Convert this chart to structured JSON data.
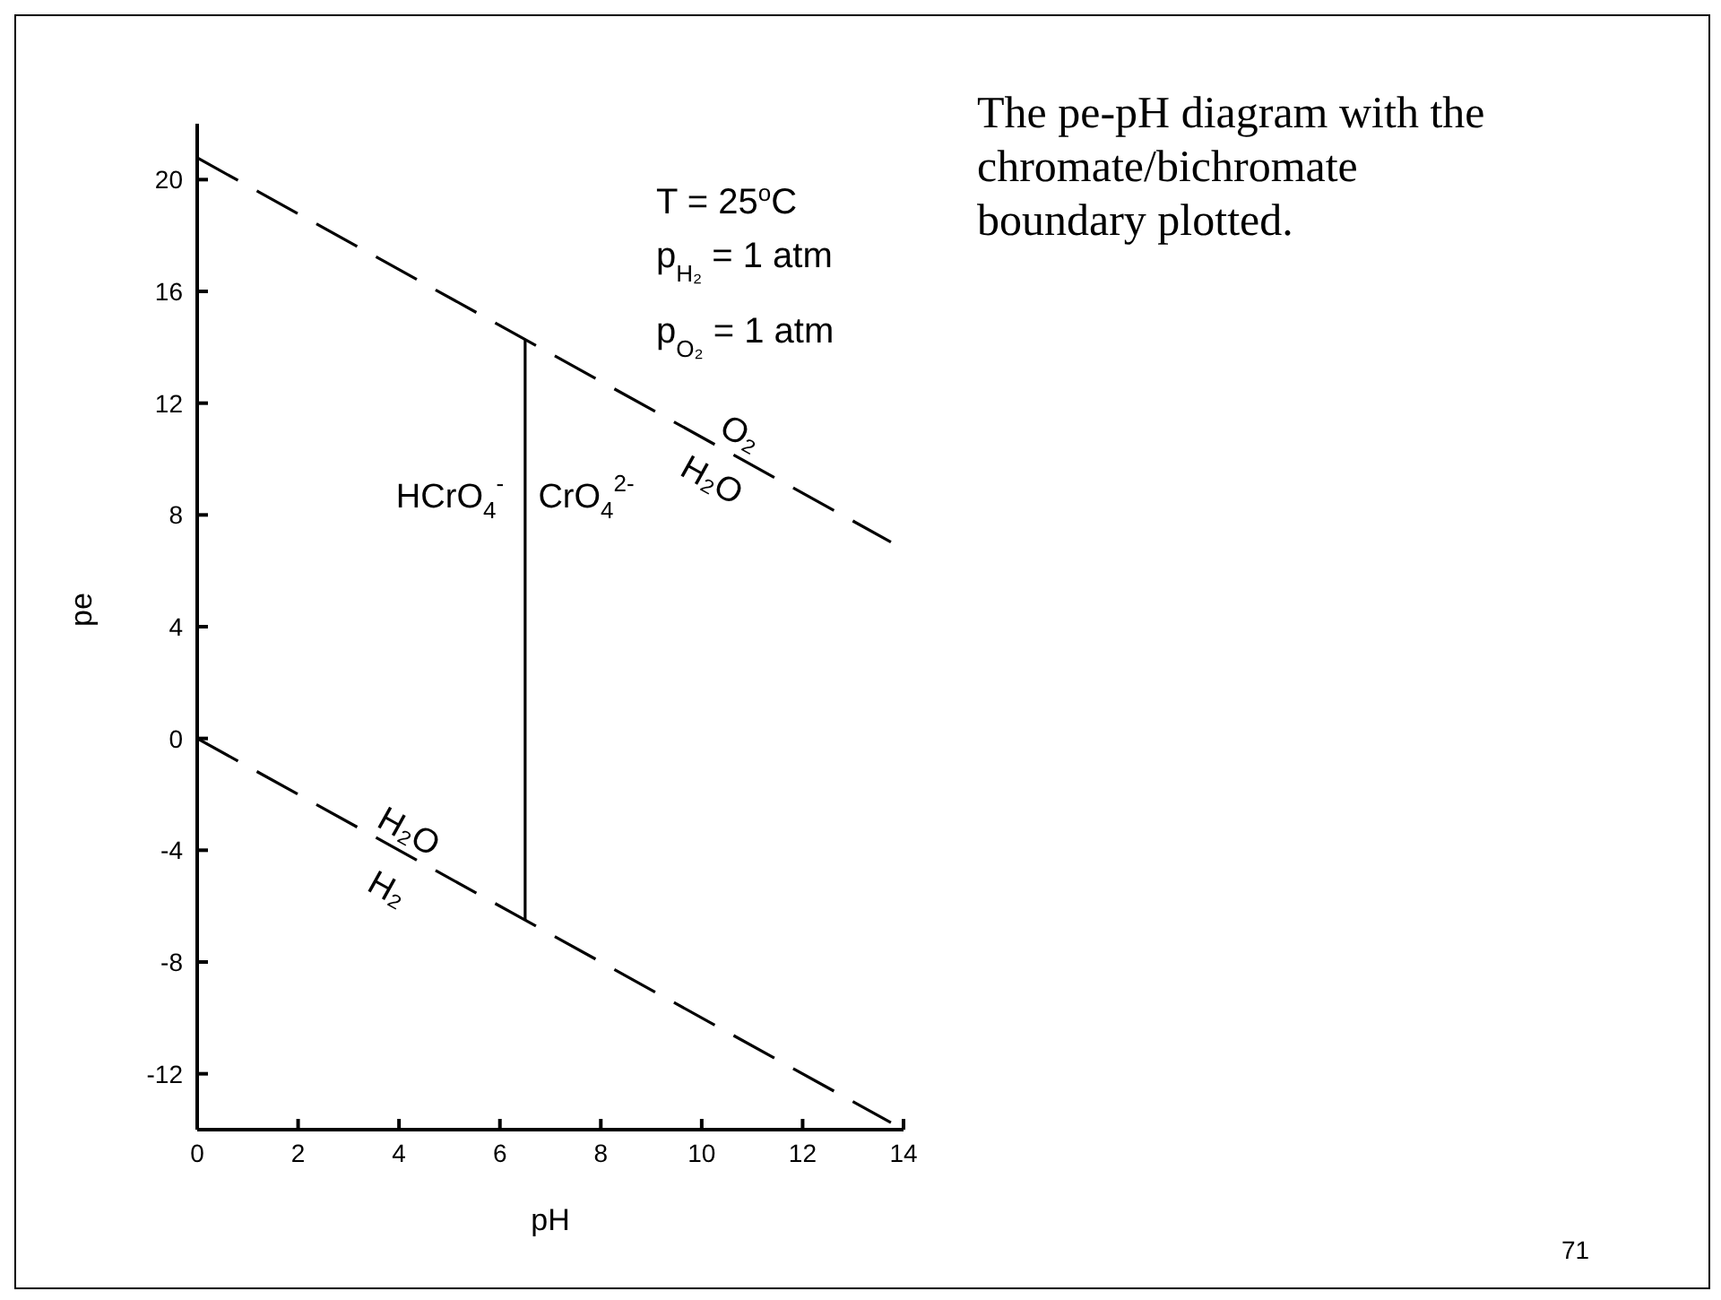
{
  "chart_data": {
    "type": "line",
    "xlabel": "pH",
    "ylabel": "pe",
    "xlim": [
      0,
      14
    ],
    "ylim": [
      -14,
      22
    ],
    "xticks": [
      0,
      2,
      4,
      6,
      8,
      10,
      12,
      14
    ],
    "yticks": [
      -12,
      -8,
      -4,
      0,
      4,
      8,
      12,
      16,
      20
    ],
    "grid": false,
    "marker": "none",
    "series": [
      {
        "color": "#000000",
        "line_style": "dashed",
        "x": [
          0,
          13.75
        ],
        "values": [
          20.78,
          7.03
        ]
      },
      {
        "color": "#000000",
        "line_style": "dashed",
        "x": [
          0,
          13.75
        ],
        "values": [
          0,
          -13.75
        ]
      },
      {
        "color": "#000000",
        "line_style": "solid",
        "x": [
          6.5,
          6.5
        ],
        "values": [
          -6.5,
          14.28
        ]
      }
    ],
    "annotations": [
      "O₂",
      "H₂O",
      "H₂O",
      "H₂",
      "HCrO$_{4}$$^{-}$",
      "CrO$_{4}$$^{2-}$",
      "T = 25$^{o}$C",
      "p$_{H₂}$ = 1 atm",
      "p$_{O₂}$ = 1 atm",
      "The pe-pH diagram with the chromate/bichromate boundary plotted.",
      "71"
    ]
  }
}
